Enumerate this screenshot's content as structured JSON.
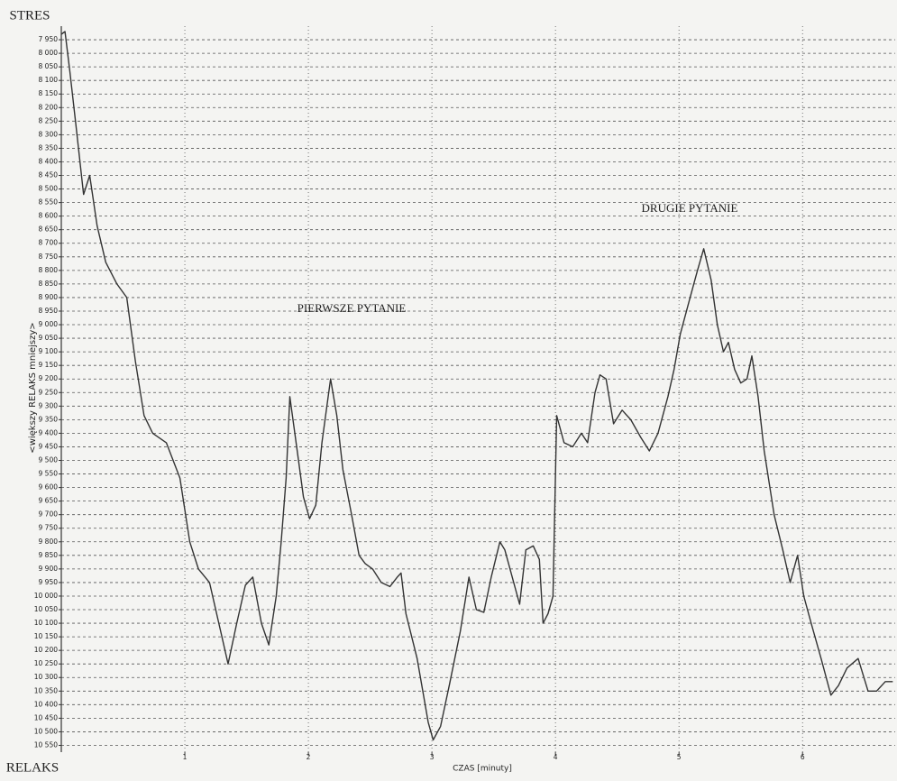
{
  "chart_data": {
    "type": "line",
    "top_label": "STRES",
    "bottom_label": "RELAKS",
    "ylabel": "<większy    RELAKS    mniejszy>",
    "xlabel": "CZAS [minuty]",
    "annotations": [
      "PIERWSZE PYTANIE",
      "DRUGIE PYTANIE"
    ],
    "color": "#333333",
    "grid": true,
    "y_inverted": true,
    "xlim": [
      0,
      6.75
    ],
    "ylim": [
      10575,
      7900
    ],
    "xticks": [
      1,
      2,
      3,
      4,
      5,
      6
    ],
    "yticks": [
      {
        "value": 7950,
        "label": "7 950"
      },
      {
        "value": 8000,
        "label": "8 000"
      },
      {
        "value": 8050,
        "label": "8 050"
      },
      {
        "value": 8100,
        "label": "8 100"
      },
      {
        "value": 8150,
        "label": "8 150"
      },
      {
        "value": 8200,
        "label": "8 200"
      },
      {
        "value": 8250,
        "label": "8 250"
      },
      {
        "value": 8300,
        "label": "8 300"
      },
      {
        "value": 8350,
        "label": "8 350"
      },
      {
        "value": 8400,
        "label": "8 400"
      },
      {
        "value": 8450,
        "label": "8 450"
      },
      {
        "value": 8500,
        "label": "8 500"
      },
      {
        "value": 8550,
        "label": "8 550"
      },
      {
        "value": 8600,
        "label": "8 600"
      },
      {
        "value": 8650,
        "label": "8 650"
      },
      {
        "value": 8700,
        "label": "8 700"
      },
      {
        "value": 8750,
        "label": "8 750"
      },
      {
        "value": 8800,
        "label": "8 800"
      },
      {
        "value": 8850,
        "label": "8 850"
      },
      {
        "value": 8900,
        "label": "8 900"
      },
      {
        "value": 8950,
        "label": "8 950"
      },
      {
        "value": 9000,
        "label": "9 000"
      },
      {
        "value": 9050,
        "label": "9 050"
      },
      {
        "value": 9100,
        "label": "9 100"
      },
      {
        "value": 9150,
        "label": "9 150"
      },
      {
        "value": 9200,
        "label": "9 200"
      },
      {
        "value": 9250,
        "label": "9 250"
      },
      {
        "value": 9300,
        "label": "9 300"
      },
      {
        "value": 9350,
        "label": "9 350"
      },
      {
        "value": 9400,
        "label": "9 400"
      },
      {
        "value": 9450,
        "label": "9 450"
      },
      {
        "value": 9500,
        "label": "9 500"
      },
      {
        "value": 9550,
        "label": "9 550"
      },
      {
        "value": 9600,
        "label": "9 600"
      },
      {
        "value": 9650,
        "label": "9 650"
      },
      {
        "value": 9700,
        "label": "9 700"
      },
      {
        "value": 9750,
        "label": "9 750"
      },
      {
        "value": 9800,
        "label": "9 800"
      },
      {
        "value": 9850,
        "label": "9 850"
      },
      {
        "value": 9900,
        "label": "9 900"
      },
      {
        "value": 9950,
        "label": "9 950"
      },
      {
        "value": 10000,
        "label": "10 000"
      },
      {
        "value": 10050,
        "label": "10 050"
      },
      {
        "value": 10100,
        "label": "10 100"
      },
      {
        "value": 10150,
        "label": "10 150"
      },
      {
        "value": 10200,
        "label": "10 200"
      },
      {
        "value": 10250,
        "label": "10 250"
      },
      {
        "value": 10300,
        "label": "10 300"
      },
      {
        "value": 10350,
        "label": "10 350"
      },
      {
        "value": 10400,
        "label": "10 400"
      },
      {
        "value": 10450,
        "label": "10 450"
      },
      {
        "value": 10500,
        "label": "10 500"
      },
      {
        "value": 10550,
        "label": "10 550"
      }
    ],
    "x": [
      0,
      0.03,
      0.07,
      0.12,
      0.18,
      0.23,
      0.29,
      0.36,
      0.45,
      0.53,
      0.6,
      0.67,
      0.74,
      0.85,
      0.96,
      1.04,
      1.11,
      1.2,
      1.29,
      1.35,
      1.42,
      1.49,
      1.55,
      1.62,
      1.68,
      1.74,
      1.78,
      1.82,
      1.85,
      1.91,
      1.96,
      2.01,
      2.06,
      2.11,
      2.15,
      2.18,
      2.23,
      2.28,
      2.35,
      2.41,
      2.46,
      2.52,
      2.59,
      2.66,
      2.72,
      2.75,
      2.79,
      2.88,
      2.97,
      3.01,
      3.07,
      3.14,
      3.23,
      3.3,
      3.36,
      3.42,
      3.48,
      3.55,
      3.59,
      3.65,
      3.71,
      3.76,
      3.82,
      3.87,
      3.9,
      3.94,
      3.98,
      4.01,
      4.07,
      4.14,
      4.21,
      4.26,
      4.32,
      4.36,
      4.41,
      4.47,
      4.54,
      4.61,
      4.69,
      4.76,
      4.83,
      4.91,
      4.96,
      5.01,
      5.09,
      5.15,
      5.2,
      5.26,
      5.31,
      5.36,
      5.4,
      5.45,
      5.5,
      5.55,
      5.59,
      5.64,
      5.69,
      5.77,
      5.84,
      5.9,
      5.96,
      6.01,
      6.07,
      6.15,
      6.23,
      6.29,
      6.36,
      6.45,
      6.53,
      6.6,
      6.67,
      6.73
    ],
    "values": [
      7930,
      7920,
      8070,
      8270,
      8520,
      8450,
      8635,
      8770,
      8850,
      8900,
      9135,
      9335,
      9400,
      9435,
      9565,
      9800,
      9900,
      9950,
      10130,
      10250,
      10100,
      9960,
      9930,
      10100,
      10180,
      10000,
      9800,
      9565,
      9265,
      9465,
      9635,
      9715,
      9665,
      9435,
      9300,
      9200,
      9335,
      9535,
      9700,
      9850,
      9880,
      9900,
      9950,
      9965,
      9930,
      9915,
      10065,
      10230,
      10465,
      10530,
      10480,
      10330,
      10130,
      9930,
      10050,
      10060,
      9930,
      9800,
      9830,
      9930,
      10030,
      9830,
      9815,
      9865,
      10100,
      10065,
      10000,
      9335,
      9435,
      9450,
      9400,
      9435,
      9250,
      9185,
      9200,
      9365,
      9315,
      9350,
      9415,
      9465,
      9400,
      9265,
      9165,
      9035,
      8900,
      8800,
      8720,
      8835,
      9000,
      9100,
      9065,
      9165,
      9215,
      9200,
      9115,
      9265,
      9465,
      9700,
      9830,
      9950,
      9850,
      10000,
      10100,
      10230,
      10365,
      10330,
      10265,
      10230,
      10350,
      10350,
      10315,
      10315
    ]
  }
}
